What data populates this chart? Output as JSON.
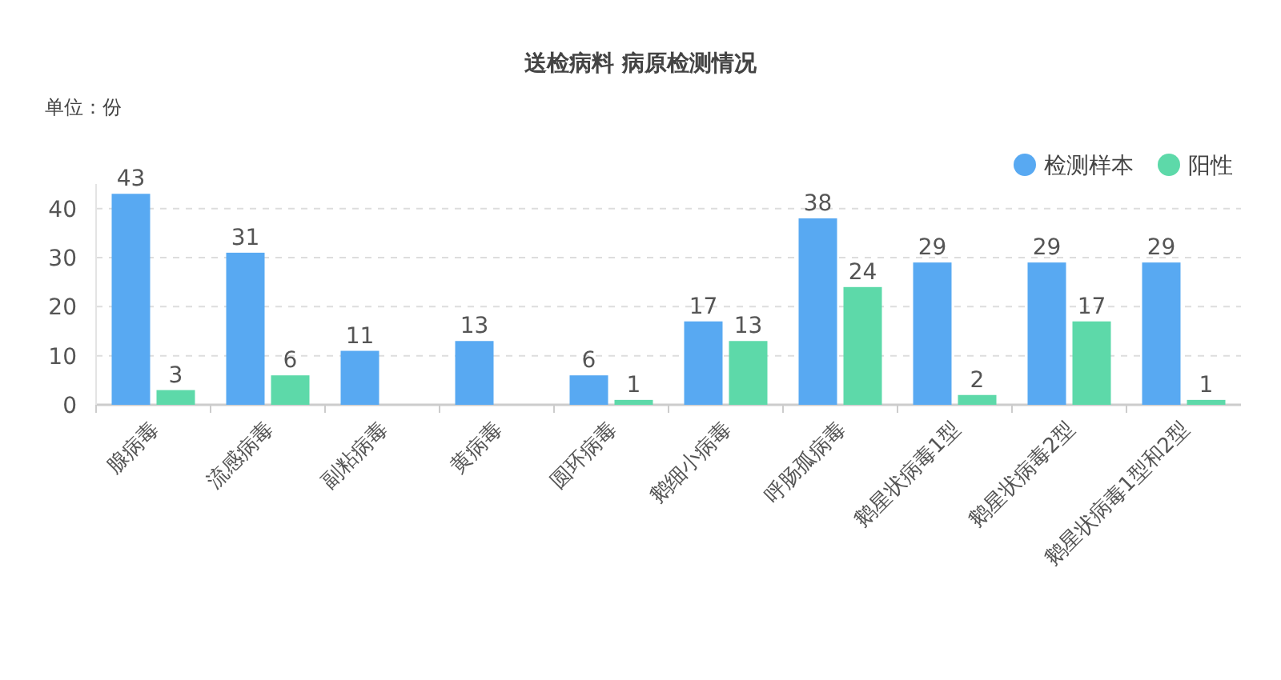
{
  "chart_data": {
    "type": "bar",
    "title": "送检病料 病原检测情况",
    "annotations": [
      "单位：份"
    ],
    "categories": [
      "腺病毒",
      "流感病毒",
      "副粘病毒",
      "黄病毒",
      "圆环病毒",
      "鹅细小病毒",
      "呼肠孤病毒",
      "鹅星状病毒1型",
      "鹅星状病毒2型",
      "鹅星状病毒1型和2型"
    ],
    "series": [
      {
        "name": "检测样本",
        "color": "#58a9f2",
        "values": [
          43,
          31,
          11,
          13,
          6,
          17,
          38,
          29,
          29,
          29
        ]
      },
      {
        "name": "阳性",
        "color": "#5dd9a9",
        "values": [
          3,
          6,
          null,
          null,
          1,
          13,
          24,
          2,
          17,
          1
        ]
      }
    ],
    "ylim": [
      0,
      45
    ],
    "yticks": [
      0,
      10,
      20,
      30,
      40
    ],
    "grid": "y",
    "legend": "top right",
    "data_labels": true
  }
}
